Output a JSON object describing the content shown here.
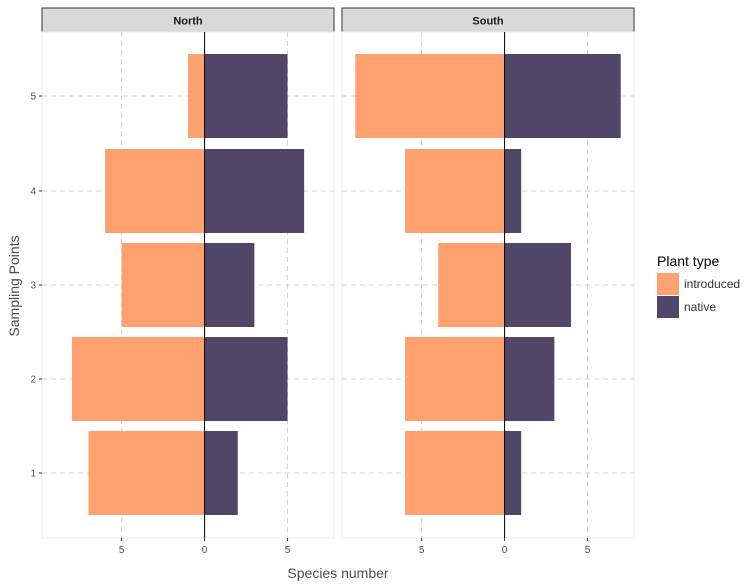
{
  "chart_data": {
    "type": "bar",
    "orientation": "horizontal",
    "layout": "population-pyramid",
    "xlabel": "Species number",
    "ylabel": "Sampling Points",
    "categories": [
      "1",
      "2",
      "3",
      "4",
      "5"
    ],
    "x_ticks": [
      -5,
      0,
      5
    ],
    "x_tick_labels": [
      "5",
      "0",
      "5"
    ],
    "xlim": [
      -9.8,
      7.8
    ],
    "grid": true,
    "legend": {
      "title": "Plant type",
      "position": "right",
      "items": [
        {
          "label": "introduced",
          "color": "#FFA070"
        },
        {
          "label": "native",
          "color": "#4F4668"
        }
      ]
    },
    "panels": [
      {
        "title": "North",
        "series": [
          {
            "name": "introduced",
            "values": [
              7,
              8,
              5,
              6,
              1
            ]
          },
          {
            "name": "native",
            "values": [
              2,
              5,
              3,
              6,
              5
            ]
          }
        ]
      },
      {
        "title": "South",
        "series": [
          {
            "name": "introduced",
            "values": [
              6,
              6,
              4,
              6,
              9
            ]
          },
          {
            "name": "native",
            "values": [
              1,
              3,
              4,
              1,
              7
            ]
          }
        ]
      }
    ]
  }
}
